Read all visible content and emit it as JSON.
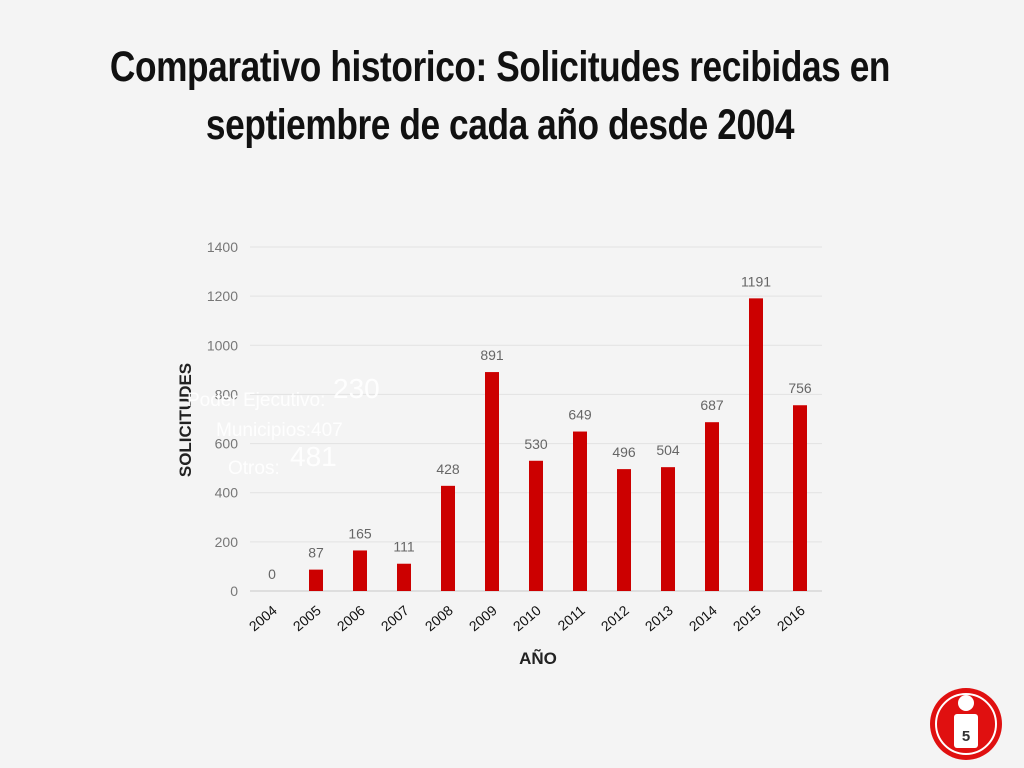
{
  "title": {
    "line1": "Comparativo historico: Solicitudes recibidas en",
    "line2": "septiembre de cada año desde 2004"
  },
  "overlay": {
    "poder_label": "Poder Ejecutivo:",
    "poder_value": "230",
    "municipios_label": "Municipios:407",
    "otros_label": "Otros:",
    "otros_value": "481"
  },
  "chart_data": {
    "type": "bar",
    "title": "",
    "xlabel": "AÑO",
    "ylabel": "SOLICITUDES",
    "ylim": [
      0,
      1400
    ],
    "yticks": [
      0,
      200,
      400,
      600,
      800,
      1000,
      1200,
      1400
    ],
    "grid": true,
    "categories": [
      "2004",
      "2005",
      "2006",
      "2007",
      "2008",
      "2009",
      "2010",
      "2011",
      "2012",
      "2013",
      "2014",
      "2015",
      "2016"
    ],
    "values": [
      0,
      87,
      165,
      111,
      428,
      891,
      530,
      649,
      496,
      504,
      687,
      1191,
      756
    ],
    "bar_color": "#cc0000"
  },
  "page_number": "5",
  "colors": {
    "background": "#f4f4f4",
    "bar": "#cc0000",
    "badge": "#e01010"
  }
}
